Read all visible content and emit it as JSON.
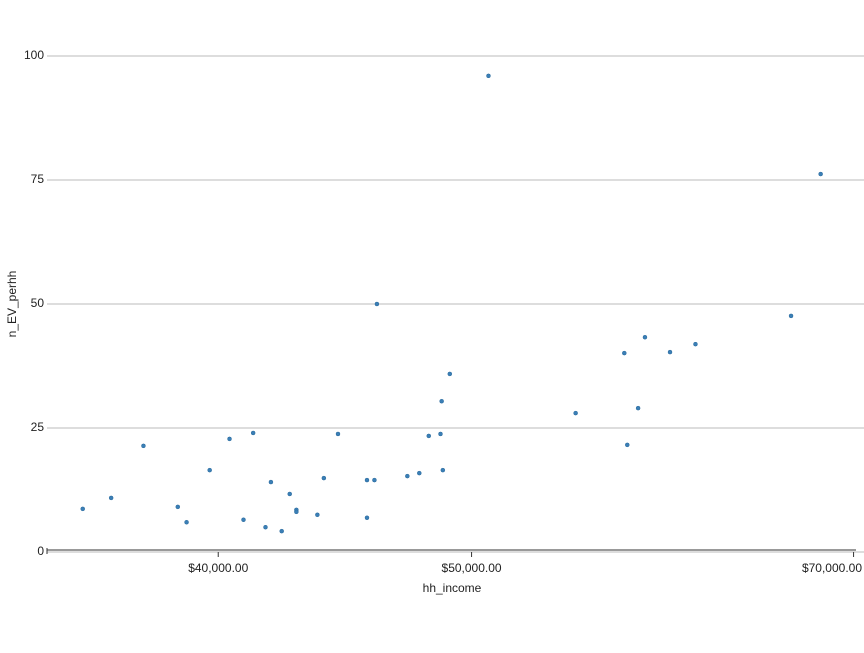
{
  "chart_data": {
    "type": "scatter",
    "x_label": "hh_income",
    "y_label": "n_EV_perhh",
    "color": "#3b7fb6",
    "log_x": true,
    "grid": true,
    "xlim": [
      34400,
      70150
    ],
    "ylim": [
      0,
      100
    ],
    "xticks": [
      {
        "value": 40000,
        "label": "$40,000.00"
      },
      {
        "value": 50000,
        "label": "$50,000.00"
      },
      {
        "value": 70000,
        "label": "$70,000.00"
      }
    ],
    "yticks": [
      0,
      25,
      50,
      75,
      100
    ],
    "x": [
      35500,
      36400,
      37450,
      38600,
      38900,
      39700,
      40400,
      40900,
      41250,
      41700,
      41900,
      42300,
      42600,
      42850,
      42850,
      43650,
      43900,
      44450,
      45600,
      45600,
      45900,
      46000,
      47250,
      47750,
      48150,
      48650,
      48700,
      48750,
      49050,
      50750,
      54800,
      57200,
      57350,
      57900,
      58250,
      59550,
      60900,
      66250,
      68000
    ],
    "values": [
      8.7,
      10.9,
      21.4,
      9.1,
      6.0,
      16.5,
      22.8,
      6.5,
      24.0,
      5.0,
      14.1,
      4.2,
      11.7,
      8.5,
      8.1,
      7.5,
      14.9,
      23.8,
      6.9,
      14.5,
      14.5,
      50.0,
      15.3,
      15.9,
      23.4,
      23.8,
      30.4,
      16.5,
      35.9,
      96.0,
      28.0,
      40.1,
      21.6,
      29.0,
      43.3,
      40.3,
      41.9,
      47.6,
      76.2
    ]
  }
}
